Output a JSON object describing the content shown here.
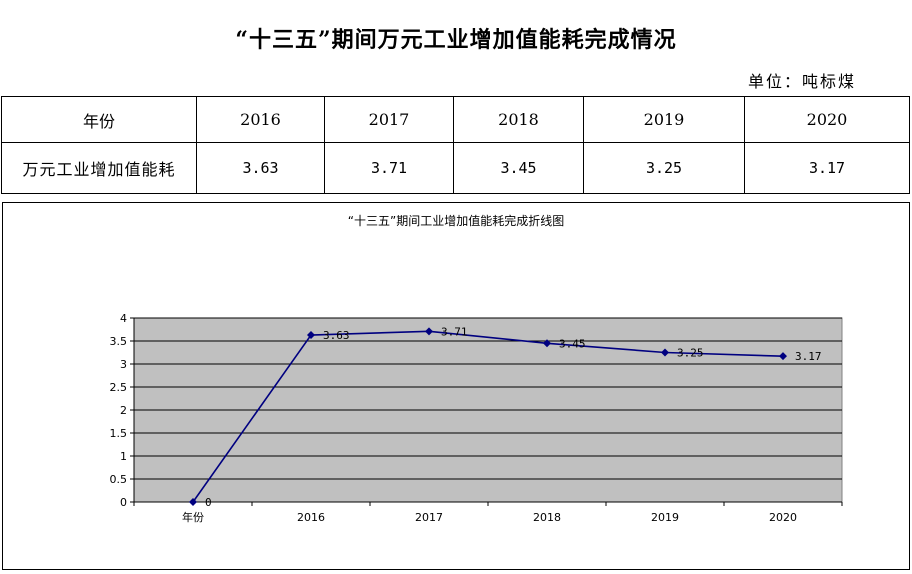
{
  "page": {
    "title": "“十三五”期间万元工业增加值能耗完成情况",
    "unit": "单位：吨标煤"
  },
  "table": {
    "headers": [
      "年份",
      "2016",
      "2017",
      "2018",
      "2019",
      "2020"
    ],
    "row_label": "万元工业增加值能耗",
    "values": [
      "3.63",
      "3.71",
      "3.45",
      "3.25",
      "3.17"
    ]
  },
  "chart_data": {
    "type": "line",
    "title": "“十三五”期间工业增加值能耗完成折线图",
    "categories": [
      "年份",
      "2016",
      "2017",
      "2018",
      "2019",
      "2020"
    ],
    "series": [
      {
        "values": [
          0,
          3.63,
          3.71,
          3.45,
          3.25,
          3.17
        ],
        "labels": [
          "0",
          "3.63",
          "3.71",
          "3.45",
          "3.25",
          "3.17"
        ]
      }
    ],
    "yticks": [
      "0",
      "0.5",
      "1",
      "1.5",
      "2",
      "2.5",
      "3",
      "3.5",
      "4"
    ],
    "ylim": [
      0,
      4
    ],
    "grid": true,
    "colors": {
      "line": "#000080",
      "plot_bg": "#c0c0c0",
      "grid": "#000000"
    }
  }
}
